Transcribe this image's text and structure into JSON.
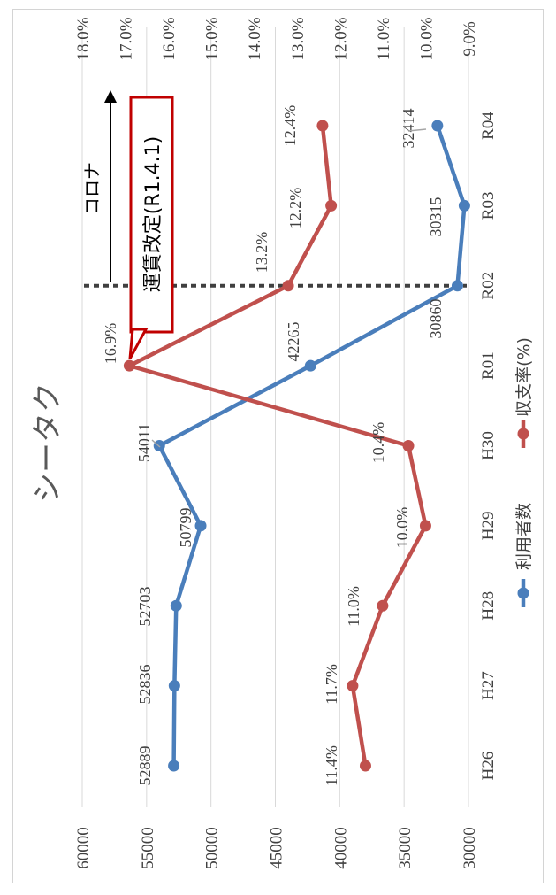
{
  "chart_data": {
    "type": "line",
    "title": "シータク",
    "categories": [
      "H26",
      "H27",
      "H28",
      "H29",
      "H30",
      "R01",
      "R02",
      "R03",
      "R04"
    ],
    "y_left": {
      "range": [
        30000,
        60000
      ],
      "ticks": [
        "60000",
        "55000",
        "50000",
        "45000",
        "40000",
        "35000",
        "30000"
      ]
    },
    "y_right": {
      "range": [
        9.0,
        18.0
      ],
      "ticks": [
        "18.0%",
        "17.0%",
        "16.0%",
        "15.0%",
        "14.0%",
        "13.0%",
        "12.0%",
        "11.0%",
        "10.0%",
        "9.0%"
      ]
    },
    "grid": true,
    "legend_position": "bottom",
    "series": [
      {
        "name": "利用者数",
        "axis": "left",
        "color": "#4a7ebb",
        "values": [
          52889,
          52836,
          52703,
          50799,
          54011,
          42265,
          30860,
          30315,
          32414
        ],
        "labels": [
          "52889",
          "52836",
          "52703",
          "50799",
          "54011",
          "42265",
          "30860",
          "30315",
          "32414"
        ]
      },
      {
        "name": "収支率(%)",
        "axis": "right",
        "color": "#c0504d",
        "values": [
          11.4,
          11.7,
          11.0,
          10.0,
          10.4,
          16.9,
          13.2,
          12.2,
          12.4
        ],
        "labels": [
          "11.4%",
          "11.7%",
          "11.0%",
          "10.0%",
          "10.4%",
          "16.9%",
          "13.2%",
          "12.2%",
          "12.4%"
        ]
      }
    ],
    "annotations": {
      "covid_label": "コロナ",
      "divider_category": "R02",
      "callout": "運賃改定(R1.4.1)",
      "callout_category": "R01"
    }
  }
}
